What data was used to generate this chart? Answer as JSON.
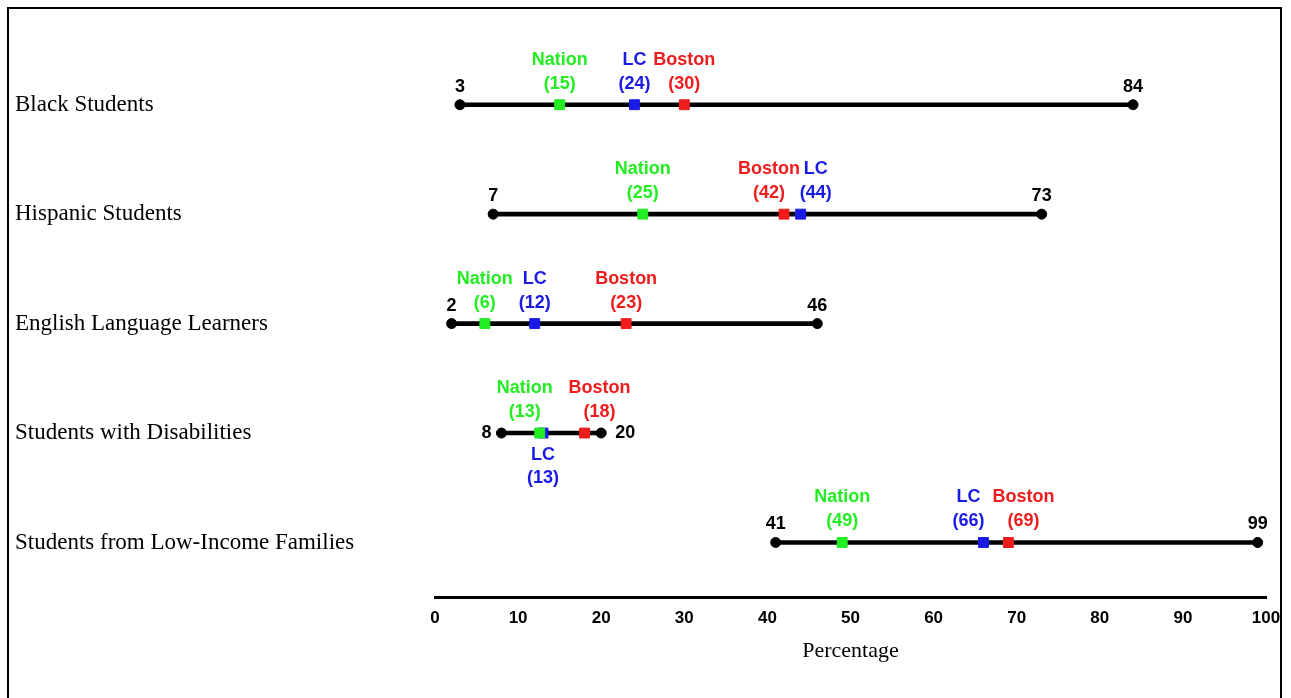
{
  "chart_data": {
    "type": "scatter",
    "orientation": "horizontal",
    "categories": [
      "Black Students",
      "Hispanic Students",
      "English Language Learners",
      "Students with Disabilities",
      "Students from Low-Income Families"
    ],
    "xlabel": "Percentage",
    "xlim": [
      0,
      100
    ],
    "xticks": [
      0,
      10,
      20,
      30,
      40,
      50,
      60,
      70,
      80,
      90,
      100
    ],
    "grid": false,
    "legend": false,
    "series": [
      {
        "type": "bar",
        "color": "#000000",
        "base": [
          3,
          7,
          2,
          8,
          41
        ],
        "values": [
          81,
          66,
          44,
          12,
          58
        ]
      },
      {
        "type": "scatter",
        "marker": "circle",
        "color": "#000000",
        "values": [
          3,
          7,
          2,
          8,
          41
        ],
        "value_labels": [
          "3",
          "7",
          "2",
          "8",
          "41"
        ]
      },
      {
        "type": "scatter",
        "marker": "circle",
        "color": "#000000",
        "values": [
          84,
          73,
          46,
          20,
          99
        ],
        "value_labels": [
          "84",
          "73",
          "46",
          "20",
          "99"
        ]
      },
      {
        "type": "scatter",
        "name": "Nation",
        "marker": "square",
        "color": "#22ee22",
        "values": [
          15,
          25,
          6,
          12.6,
          49
        ],
        "value_labels": [
          "(15)",
          "(25)",
          "(6)",
          "(13)",
          "(49)"
        ]
      },
      {
        "type": "scatter",
        "name": "LC",
        "marker": "square",
        "color": "#1a1ae6",
        "values": [
          24,
          44,
          12,
          13,
          66
        ],
        "value_labels": [
          "(24)",
          "(44)",
          "(12)",
          "(13)",
          "(66)"
        ]
      },
      {
        "type": "scatter",
        "name": "Boston",
        "marker": "square",
        "color": "#ee1c1c",
        "values": [
          30,
          42,
          23,
          18,
          69
        ],
        "value_labels": [
          "(30)",
          "(42)",
          "(23)",
          "(18)",
          "(69)"
        ]
      }
    ]
  }
}
